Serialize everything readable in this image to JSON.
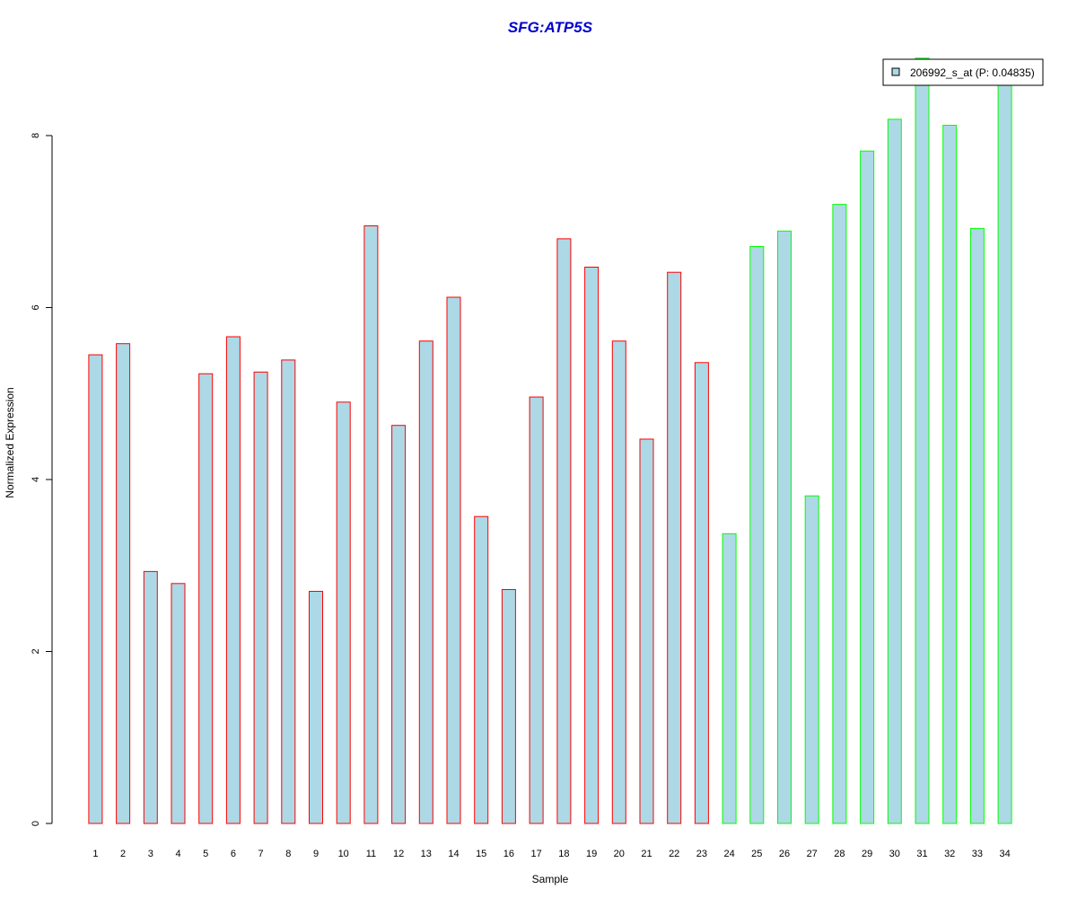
{
  "chart_data": {
    "type": "bar",
    "title": "SFG:ATP5S",
    "xlabel": "Sample",
    "ylabel": "Normalized Expression",
    "ylim": [
      0,
      8.95
    ],
    "yticks": [
      0,
      2,
      4,
      6,
      8
    ],
    "grid": false,
    "legend": {
      "placement": "top-right",
      "entries": [
        "206992_s_at (P: 0.04835)"
      ]
    },
    "colors": {
      "fill": "#add8e6",
      "group1_border": "#ff0000",
      "group2_border": "#00ff00",
      "title": "#0000cc"
    },
    "categories": [
      "1",
      "2",
      "3",
      "4",
      "5",
      "6",
      "7",
      "8",
      "9",
      "10",
      "11",
      "12",
      "13",
      "14",
      "15",
      "16",
      "17",
      "18",
      "19",
      "20",
      "21",
      "22",
      "23",
      "24",
      "25",
      "26",
      "27",
      "28",
      "29",
      "30",
      "31",
      "32",
      "33",
      "34"
    ],
    "values": [
      5.45,
      5.58,
      2.93,
      2.79,
      5.23,
      5.66,
      5.25,
      5.39,
      2.7,
      4.9,
      6.95,
      4.63,
      5.61,
      6.12,
      3.57,
      2.72,
      4.96,
      6.8,
      6.47,
      5.61,
      4.47,
      6.41,
      5.36,
      3.37,
      6.71,
      6.89,
      3.81,
      7.2,
      7.82,
      8.19,
      8.9,
      8.12,
      6.92,
      8.6
    ],
    "groups": [
      1,
      1,
      1,
      1,
      1,
      1,
      1,
      1,
      1,
      1,
      1,
      1,
      1,
      1,
      1,
      1,
      1,
      1,
      1,
      1,
      1,
      1,
      1,
      2,
      2,
      2,
      2,
      2,
      2,
      2,
      2,
      2,
      2,
      2
    ]
  }
}
